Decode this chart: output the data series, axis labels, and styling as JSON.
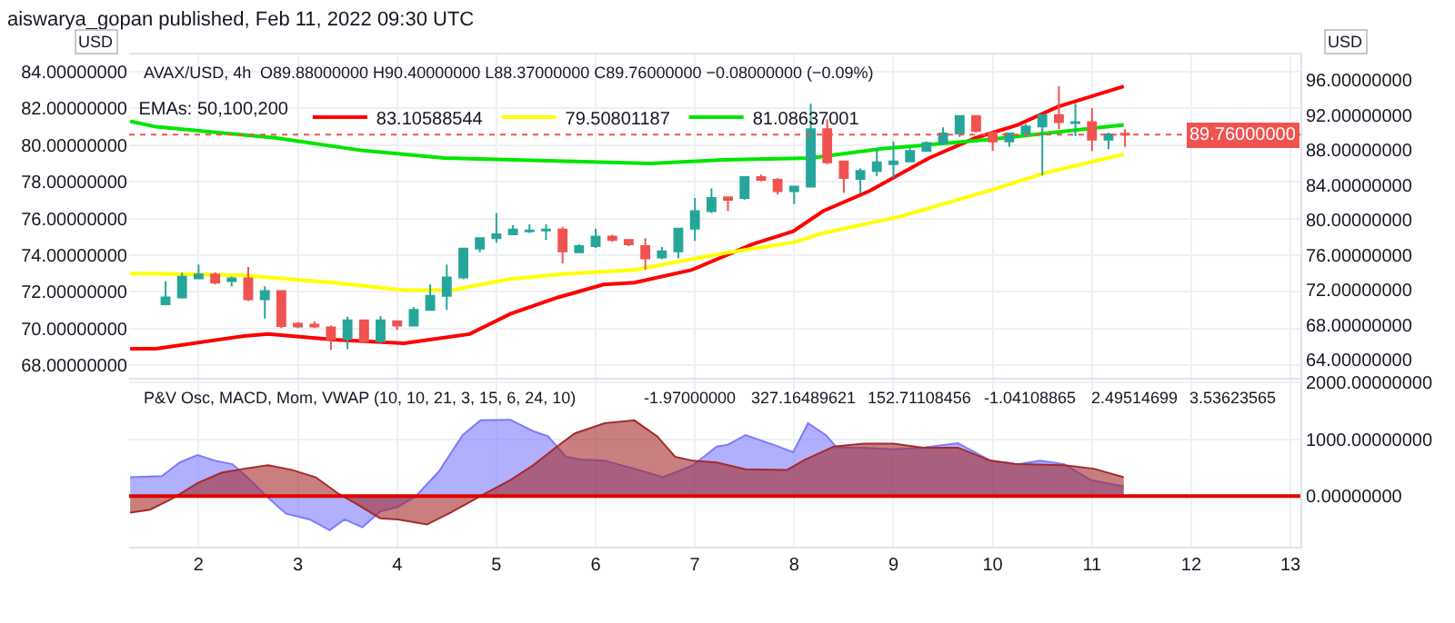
{
  "chart_data": [
    {
      "type": "candlestick",
      "title": "aiswarya_gopan published, Feb 11, 2022 09:30 UTC",
      "subtitle": "AVAX/USD, 4h",
      "ylabel": "USD",
      "y2label": "USD",
      "legend_title": "EMAs: 50,100,200",
      "annotations": [
        "O89.88000000 H90.40000000 L88.37000000 C89.76000000 −0.08000000 (−0.09%)"
      ],
      "xlim": [
        1.3,
        13.1
      ],
      "xticks": [
        2,
        3,
        4,
        5,
        6,
        7,
        8,
        9,
        10,
        11,
        12,
        13
      ],
      "ylim": [
        67.34,
        84.94
      ],
      "yticks": [
        {
          "value": 68,
          "label": "68.00000000"
        },
        {
          "value": 70,
          "label": "70.00000000"
        },
        {
          "value": 72,
          "label": "72.00000000"
        },
        {
          "value": 74,
          "label": "74.00000000"
        },
        {
          "value": 76,
          "label": "76.00000000"
        },
        {
          "value": 78,
          "label": "78.00000000"
        },
        {
          "value": 80,
          "label": "80.00000000"
        },
        {
          "value": 82,
          "label": "82.00000000"
        },
        {
          "value": 84,
          "label": "84.00000000"
        }
      ],
      "y2lim": [
        61.96,
        98.95
      ],
      "y2ticks": [
        {
          "value": 64,
          "label": "64.00000000"
        },
        {
          "value": 68,
          "label": "68.00000000"
        },
        {
          "value": 72,
          "label": "72.00000000"
        },
        {
          "value": 76,
          "label": "76.00000000"
        },
        {
          "value": 80,
          "label": "80.00000000"
        },
        {
          "value": 84,
          "label": "84.00000000"
        },
        {
          "value": 88,
          "label": "88.00000000"
        },
        {
          "value": 92,
          "label": "92.00000000"
        },
        {
          "value": 96,
          "label": "96.00000000"
        }
      ],
      "grid": true,
      "legend": "top left",
      "tick_labels": "y",
      "ref_lines": [
        {
          "axis": "y2",
          "value": 89.76,
          "label": "89.76000000",
          "color": "#ef5350",
          "line_style": "dotted"
        }
      ],
      "series": [
        {
          "axis": "y2",
          "x": [
            1.667,
            1.833,
            2,
            2.167,
            2.333,
            2.5,
            2.667,
            2.833,
            3,
            3.167,
            3.333,
            3.5,
            3.667,
            3.833,
            4,
            4.167,
            4.333,
            4.5,
            4.667,
            4.833,
            5,
            5.167,
            5.333,
            5.5,
            5.667,
            5.833,
            6,
            6.167,
            6.333,
            6.5,
            6.667,
            6.833,
            7,
            7.167,
            7.333,
            7.5,
            7.667,
            7.833,
            8,
            8.167,
            8.333,
            8.5,
            8.667,
            8.833,
            9,
            9.167,
            9.333,
            9.5,
            9.667,
            9.833,
            10,
            10.167,
            10.333,
            10.5,
            10.667,
            10.833,
            11,
            11.167,
            11.333
          ],
          "ohlc": [
            [
              70.34,
              72.97,
              70.2,
              71.13
            ],
            [
              71.13,
              73.95,
              71.0,
              73.49
            ],
            [
              73.3,
              74.9,
              73.2,
              73.75
            ],
            [
              73.75,
              74.0,
              72.6,
              72.8
            ],
            [
              73.0,
              73.5,
              72.4,
              73.3
            ],
            [
              73.3,
              74.6,
              70.7,
              70.9
            ],
            [
              70.9,
              72.4,
              68.7,
              71.85
            ],
            [
              71.85,
              71.9,
              67.6,
              67.85
            ],
            [
              68.1,
              68.3,
              67.6,
              67.8
            ],
            [
              68.0,
              68.4,
              67.6,
              67.8
            ],
            [
              67.7,
              67.9,
              65.1,
              66.3
            ],
            [
              66.4,
              68.9,
              65.2,
              68.5
            ],
            [
              68.5,
              68.6,
              65.9,
              66.1
            ],
            [
              66.1,
              69.0,
              65.9,
              68.5
            ],
            [
              68.4,
              68.4,
              67.4,
              67.9
            ],
            [
              67.9,
              70.0,
              67.8,
              69.7
            ],
            [
              69.7,
              72.6,
              69.6,
              71.3
            ],
            [
              71.3,
              74.9,
              69.7,
              73.4
            ],
            [
              73.4,
              76.8,
              73.2,
              76.7
            ],
            [
              76.7,
              78.0,
              76.3,
              77.9
            ],
            [
              77.9,
              80.8,
              77.4,
              78.35
            ],
            [
              78.35,
              79.4,
              78.3,
              78.9
            ],
            [
              78.7,
              79.5,
              78.5,
              78.8
            ],
            [
              78.8,
              79.5,
              77.7,
              78.9
            ],
            [
              78.9,
              79.2,
              75.0,
              76.4
            ],
            [
              76.3,
              77.2,
              76.2,
              77.0
            ],
            [
              77.0,
              79.0,
              76.8,
              78.1
            ],
            [
              78.1,
              78.3,
              77.5,
              77.7
            ],
            [
              77.7,
              77.8,
              77.0,
              77.2
            ],
            [
              77.0,
              77.9,
              74.3,
              75.6
            ],
            [
              75.7,
              76.9,
              75.5,
              76.4
            ],
            [
              76.4,
              79.0,
              75.6,
              79.0
            ],
            [
              79.0,
              82.5,
              77.6,
              81.0
            ],
            [
              81.0,
              83.6,
              80.8,
              82.5
            ],
            [
              82.6,
              82.7,
              81.0,
              82.3
            ],
            [
              82.5,
              85.0,
              82.3,
              84.9
            ],
            [
              84.9,
              85.2,
              84.4,
              84.6
            ],
            [
              84.6,
              84.8,
              82.9,
              83.3
            ],
            [
              83.3,
              83.9,
              81.8,
              83.8
            ],
            [
              83.8,
              93.3,
              83.8,
              90.4
            ],
            [
              90.4,
              91.5,
              86.4,
              86.6
            ],
            [
              86.7,
              86.8,
              83.1,
              84.8
            ],
            [
              84.7,
              85.9,
              83.0,
              85.6
            ],
            [
              85.6,
              88.2,
              85.0,
              86.6
            ],
            [
              86.4,
              89.0,
              84.8,
              86.7
            ],
            [
              86.7,
              88.2,
              86.6,
              87.9
            ],
            [
              87.9,
              89.0,
              87.8,
              88.8
            ],
            [
              88.8,
              90.6,
              88.6,
              89.9
            ],
            [
              89.9,
              92.0,
              89.5,
              91.9
            ],
            [
              91.9,
              92.0,
              90.0,
              90.2
            ],
            [
              90.0,
              90.1,
              87.9,
              89.0
            ],
            [
              89.0,
              90.0,
              88.4,
              89.9
            ],
            [
              89.9,
              91.0,
              89.6,
              90.7
            ],
            [
              90.7,
              92.1,
              85.1,
              92.0
            ],
            [
              92.0,
              95.3,
              90.4,
              91.2
            ],
            [
              91.1,
              93.3,
              89.6,
              91.2
            ],
            [
              91.2,
              92.8,
              87.9,
              89.2
            ],
            [
              89.2,
              90.0,
              88.1,
              89.8
            ],
            [
              89.88,
              90.4,
              88.37,
              89.76
            ]
          ],
          "colors": [
            "#26a69a",
            "#26a69a",
            "#26a69a",
            "#ef5350",
            "#26a69a",
            "#ef5350",
            "#26a69a",
            "#ef5350",
            "#ef5350",
            "#ef5350",
            "#ef5350",
            "#26a69a",
            "#ef5350",
            "#26a69a",
            "#ef5350",
            "#26a69a",
            "#26a69a",
            "#26a69a",
            "#26a69a",
            "#26a69a",
            "#26a69a",
            "#26a69a",
            "#26a69a",
            "#26a69a",
            "#ef5350",
            "#26a69a",
            "#26a69a",
            "#ef5350",
            "#ef5350",
            "#ef5350",
            "#26a69a",
            "#26a69a",
            "#26a69a",
            "#26a69a",
            "#ef5350",
            "#26a69a",
            "#ef5350",
            "#ef5350",
            "#26a69a",
            "#26a69a",
            "#ef5350",
            "#ef5350",
            "#26a69a",
            "#26a69a",
            "#26a69a",
            "#26a69a",
            "#26a69a",
            "#26a69a",
            "#26a69a",
            "#ef5350",
            "#ef5350",
            "#26a69a",
            "#26a69a",
            "#26a69a",
            "#ef5350",
            "#26a69a",
            "#ef5350",
            "#26a69a",
            "#ef5350"
          ]
        },
        {
          "type": "line",
          "axis": "y",
          "name": "83.10588544",
          "color": "#ff0000",
          "x": [
            1.31,
            1.57,
            2.46,
            2.7,
            3.36,
            4.07,
            4.73,
            5.14,
            5.62,
            6.08,
            6.39,
            6.97,
            7.58,
            7.99,
            8.29,
            8.76,
            9.36,
            9.83,
            10.25,
            10.66,
            11.32
          ],
          "values": [
            68.9,
            68.9,
            69.6,
            69.7,
            69.4,
            69.2,
            69.7,
            70.8,
            71.7,
            72.4,
            72.5,
            73.2,
            74.6,
            75.3,
            76.4,
            77.5,
            79.3,
            80.4,
            81.1,
            82.1,
            83.2
          ]
        },
        {
          "type": "line",
          "axis": "y",
          "name": "79.50801187",
          "color": "#ffff00",
          "x": [
            1.31,
            1.57,
            2.46,
            3.36,
            4.07,
            4.55,
            5.14,
            5.73,
            6.39,
            7.28,
            7.99,
            8.29,
            9.06,
            9.95,
            10.54,
            11.32
          ],
          "values": [
            73.0,
            73.0,
            72.9,
            72.5,
            72.1,
            72.1,
            72.7,
            73.0,
            73.2,
            74.1,
            74.7,
            75.2,
            76.1,
            77.5,
            78.5,
            79.5
          ]
        },
        {
          "type": "line",
          "axis": "y",
          "name": "81.08637001",
          "color": "#00e600",
          "x": [
            1.31,
            1.57,
            2.77,
            3.66,
            4.48,
            6.56,
            7.28,
            8.17,
            8.88,
            9.95,
            11.32
          ],
          "values": [
            81.3,
            81.0,
            80.4,
            79.7,
            79.3,
            79.0,
            79.2,
            79.3,
            79.8,
            80.3,
            81.1
          ]
        }
      ]
    },
    {
      "type": "area",
      "title": "P&V Osc, MACD, Mom, VWAP (10, 10, 21, 3, 15, 6, 24, 10)",
      "annotations": [
        "-1.97000000",
        "327.16489621",
        "152.71108456",
        "-1.04108865",
        "2.49514699",
        "3.53623565"
      ],
      "xlim": [
        1.3,
        13.1
      ],
      "xticks": [
        2,
        3,
        4,
        5,
        6,
        7,
        8,
        9,
        10,
        11,
        12,
        13
      ],
      "y2lim": [
        -890,
        2050
      ],
      "y2ticks": [
        {
          "value": 0,
          "label": "0.00000000"
        },
        {
          "value": 1000,
          "label": "1000.00000000"
        },
        {
          "value": 2000,
          "label": "2000.00000000"
        }
      ],
      "grid": true,
      "ref_lines": [
        {
          "axis": "y2",
          "value": 0,
          "color": "#e00000",
          "line_style": "solid"
        }
      ],
      "series": [
        {
          "axis": "y2",
          "color": "#7b7bff",
          "x": [
            1.31,
            1.63,
            1.81,
            1.99,
            2.17,
            2.34,
            2.49,
            2.7,
            2.88,
            3.12,
            3.32,
            3.47,
            3.65,
            3.83,
            4.01,
            4.19,
            4.42,
            4.66,
            4.84,
            5.14,
            5.37,
            5.52,
            5.7,
            5.85,
            6.09,
            6.39,
            6.68,
            6.98,
            7.22,
            7.33,
            7.51,
            7.84,
            7.99,
            8.14,
            8.32,
            8.43,
            8.7,
            9.0,
            9.3,
            9.65,
            9.98,
            10.25,
            10.48,
            10.72,
            10.99,
            11.32
          ],
          "values": [
            330,
            350,
            590,
            720,
            620,
            560,
            330,
            -30,
            -310,
            -410,
            -600,
            -410,
            -550,
            -270,
            -190,
            0,
            430,
            1070,
            1330,
            1340,
            1140,
            1050,
            690,
            640,
            620,
            480,
            330,
            540,
            870,
            900,
            1070,
            870,
            770,
            1280,
            1070,
            850,
            850,
            820,
            850,
            930,
            620,
            560,
            620,
            560,
            280,
            170
          ]
        },
        {
          "axis": "y2",
          "color": "#a52a2a",
          "x": [
            1.31,
            1.51,
            1.75,
            1.99,
            2.23,
            2.46,
            2.7,
            2.94,
            3.18,
            3.41,
            3.59,
            3.83,
            4.01,
            4.3,
            4.54,
            4.84,
            5.14,
            5.37,
            5.61,
            5.79,
            6.09,
            6.39,
            6.62,
            6.8,
            6.98,
            7.22,
            7.51,
            7.93,
            8.11,
            8.4,
            8.7,
            9.0,
            9.3,
            9.65,
            9.98,
            10.25,
            10.72,
            11.02,
            11.32
          ],
          "values": [
            -290,
            -240,
            -30,
            230,
            410,
            480,
            540,
            460,
            330,
            40,
            -140,
            -390,
            -410,
            -500,
            -290,
            0,
            280,
            540,
            870,
            1100,
            1280,
            1330,
            1050,
            690,
            620,
            590,
            470,
            460,
            640,
            870,
            920,
            920,
            850,
            850,
            620,
            560,
            540,
            480,
            330
          ]
        }
      ]
    }
  ]
}
